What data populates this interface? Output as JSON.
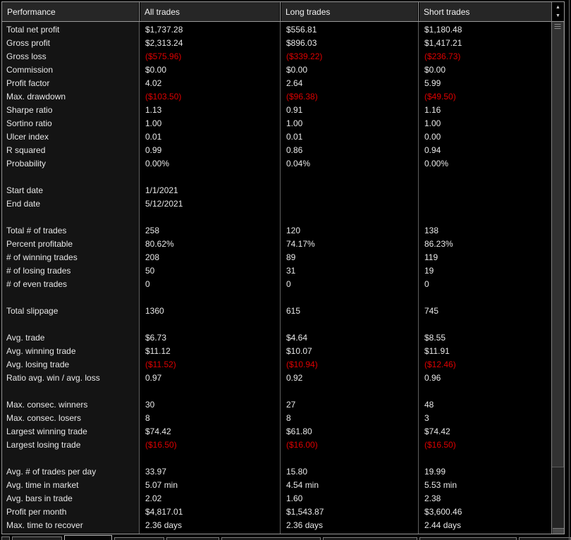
{
  "colors": {
    "background": "#000000",
    "header_bg": "#262626",
    "label_column_bg": "#141414",
    "grid_border": "#999999",
    "column_separator": "#5f5f5f",
    "text": "#e8e8e8",
    "negative_value": "#dd0000",
    "scrollbar_track": "#242424",
    "scrollbar_thumb": "#323232"
  },
  "icons": {
    "scroll_up": "▲",
    "scroll_down": "▼"
  },
  "table": {
    "columns": [
      "Performance",
      "All trades",
      "Long trades",
      "Short trades"
    ],
    "rows": [
      {
        "label": "Total net profit",
        "all": "$1,737.28",
        "long": "$556.81",
        "short": "$1,180.48"
      },
      {
        "label": "Gross profit",
        "all": "$2,313.24",
        "long": "$896.03",
        "short": "$1,417.21"
      },
      {
        "label": "Gross loss",
        "all": "($575.96)",
        "long": "($339.22)",
        "short": "($236.73)",
        "negative": true
      },
      {
        "label": "Commission",
        "all": "$0.00",
        "long": "$0.00",
        "short": "$0.00"
      },
      {
        "label": "Profit factor",
        "all": "4.02",
        "long": "2.64",
        "short": "5.99"
      },
      {
        "label": "Max. drawdown",
        "all": "($103.50)",
        "long": "($96.38)",
        "short": "($49.50)",
        "negative": true
      },
      {
        "label": "Sharpe ratio",
        "all": "1.13",
        "long": "0.91",
        "short": "1.16"
      },
      {
        "label": "Sortino ratio",
        "all": "1.00",
        "long": "1.00",
        "short": "1.00"
      },
      {
        "label": "Ulcer index",
        "all": "0.01",
        "long": "0.01",
        "short": "0.00"
      },
      {
        "label": "R squared",
        "all": "0.99",
        "long": "0.86",
        "short": "0.94"
      },
      {
        "label": "Probability",
        "all": "0.00%",
        "long": "0.04%",
        "short": "0.00%"
      },
      {
        "blank": true
      },
      {
        "label": "Start date",
        "all": "1/1/2021",
        "long": "",
        "short": ""
      },
      {
        "label": "End date",
        "all": "5/12/2021",
        "long": "",
        "short": ""
      },
      {
        "blank": true
      },
      {
        "label": "Total # of trades",
        "all": "258",
        "long": "120",
        "short": "138"
      },
      {
        "label": "Percent profitable",
        "all": "80.62%",
        "long": "74.17%",
        "short": "86.23%"
      },
      {
        "label": "# of winning trades",
        "all": "208",
        "long": "89",
        "short": "119"
      },
      {
        "label": "# of losing trades",
        "all": "50",
        "long": "31",
        "short": "19"
      },
      {
        "label": "# of even trades",
        "all": "0",
        "long": "0",
        "short": "0"
      },
      {
        "blank": true
      },
      {
        "label": "Total slippage",
        "all": "1360",
        "long": "615",
        "short": "745"
      },
      {
        "blank": true
      },
      {
        "label": "Avg. trade",
        "all": "$6.73",
        "long": "$4.64",
        "short": "$8.55"
      },
      {
        "label": "Avg. winning trade",
        "all": "$11.12",
        "long": "$10.07",
        "short": "$11.91"
      },
      {
        "label": "Avg. losing trade",
        "all": "($11.52)",
        "long": "($10.94)",
        "short": "($12.46)",
        "negative": true
      },
      {
        "label": "Ratio avg. win / avg. loss",
        "all": "0.97",
        "long": "0.92",
        "short": "0.96"
      },
      {
        "blank": true
      },
      {
        "label": "Max. consec. winners",
        "all": "30",
        "long": "27",
        "short": "48"
      },
      {
        "label": "Max. consec. losers",
        "all": "8",
        "long": "8",
        "short": "3"
      },
      {
        "label": "Largest winning trade",
        "all": "$74.42",
        "long": "$61.80",
        "short": "$74.42"
      },
      {
        "label": "Largest losing trade",
        "all": "($16.50)",
        "long": "($16.00)",
        "short": "($16.50)",
        "negative": true
      },
      {
        "blank": true
      },
      {
        "label": "Avg. # of trades per day",
        "all": "33.97",
        "long": "15.80",
        "short": "19.99"
      },
      {
        "label": "Avg. time in market",
        "all": "5.07 min",
        "long": "4.54 min",
        "short": "5.53 min"
      },
      {
        "label": "Avg. bars in trade",
        "all": "2.02",
        "long": "1.60",
        "short": "2.38"
      },
      {
        "label": "Profit per month",
        "all": "$4,817.01",
        "long": "$1,543.87",
        "short": "$3,600.46"
      },
      {
        "label": "Max. time to recover",
        "all": "2.36 days",
        "long": "2.36 days",
        "short": "2.44 days"
      }
    ]
  }
}
